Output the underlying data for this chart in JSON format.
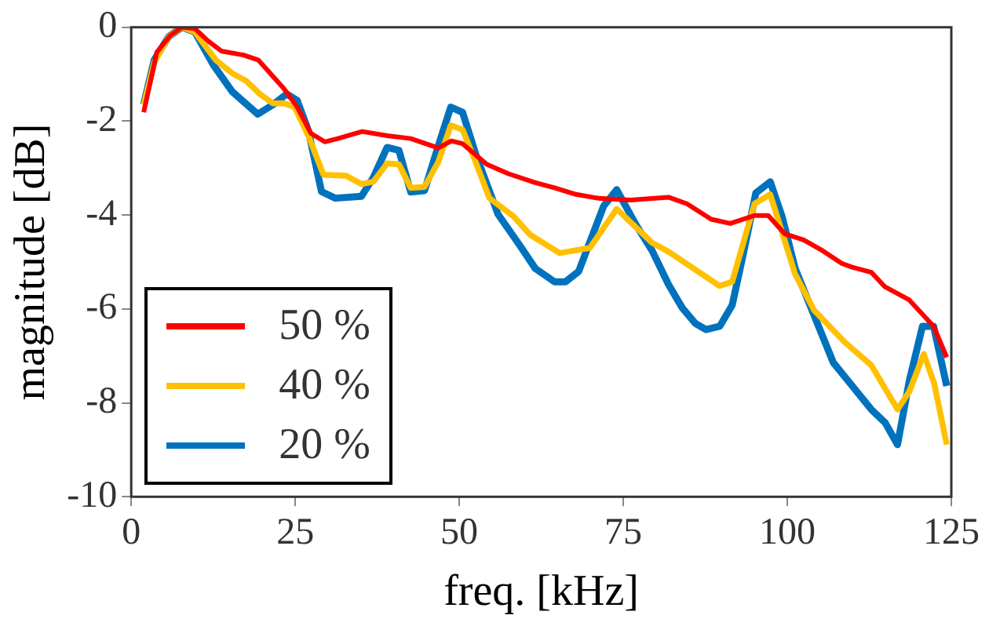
{
  "chart_data": {
    "type": "line",
    "xlabel": "freq. [kHz]",
    "ylabel": "magnitude [dB]",
    "xlim": [
      0,
      125
    ],
    "xticks": [
      0,
      25,
      50,
      75,
      100,
      125
    ],
    "ylim": [
      -10,
      0
    ],
    "yticks": [
      -10,
      -8,
      -6,
      -4,
      -2,
      0
    ],
    "grid": false,
    "legend": "bottom left",
    "marker": "none",
    "line_style": "solid",
    "series": [
      {
        "name": "50 %",
        "color": "#ff0000",
        "x": [
          1.9,
          3.9,
          5.9,
          7.7,
          9.7,
          11.7,
          13.8,
          17.1,
          19.4,
          23.3,
          25.3,
          27.4,
          29.5,
          31.5,
          35.2,
          39,
          42.6,
          46.8,
          48.8,
          50.5,
          54.2,
          57.5,
          61.6,
          64.5,
          67.8,
          71.1,
          76.1,
          81.9,
          84.7,
          88.4,
          91.3,
          95,
          97.1,
          99.6,
          102.5,
          105.4,
          108.3,
          109.9,
          112.8,
          114.9,
          118.6,
          122.3,
          124.3
        ],
        "values": [
          -1.81,
          -0.53,
          -0.18,
          0,
          -0.03,
          -0.29,
          -0.51,
          -0.59,
          -0.7,
          -1.31,
          -1.7,
          -2.26,
          -2.44,
          -2.37,
          -2.22,
          -2.31,
          -2.37,
          -2.57,
          -2.42,
          -2.48,
          -2.92,
          -3.12,
          -3.31,
          -3.42,
          -3.56,
          -3.64,
          -3.68,
          -3.62,
          -3.76,
          -4.09,
          -4.18,
          -4.01,
          -4.01,
          -4.4,
          -4.53,
          -4.76,
          -5.03,
          -5.11,
          -5.22,
          -5.53,
          -5.81,
          -6.37,
          -7.03
        ]
      },
      {
        "name": "40 %",
        "color": "#ffc000",
        "x": [
          1.9,
          3.5,
          5.7,
          7.7,
          9.7,
          12.9,
          15.4,
          17.5,
          19.6,
          21.6,
          23.3,
          24.9,
          27,
          29.3,
          32.7,
          35.1,
          36.9,
          39,
          40.8,
          42.6,
          44.7,
          46.8,
          48.7,
          50.5,
          52.5,
          54.6,
          58.3,
          60.8,
          65.3,
          69.9,
          74,
          79.4,
          81.9,
          89.7,
          91.6,
          95,
          97.4,
          101.2,
          104.1,
          108.7,
          112.8,
          116.8,
          118.6,
          120.8,
          122.4,
          124.3
        ],
        "values": [
          -1.65,
          -0.75,
          -0.2,
          0,
          -0.1,
          -0.7,
          -0.98,
          -1.14,
          -1.42,
          -1.62,
          -1.62,
          -1.7,
          -2.31,
          -3.14,
          -3.16,
          -3.34,
          -3.29,
          -2.9,
          -2.92,
          -3.42,
          -3.4,
          -2.87,
          -2.09,
          -2.18,
          -2.87,
          -3.64,
          -4.03,
          -4.42,
          -4.81,
          -4.7,
          -3.87,
          -4.59,
          -4.78,
          -5.51,
          -5.42,
          -3.76,
          -3.56,
          -5.26,
          -6.03,
          -6.7,
          -7.2,
          -8.14,
          -7.76,
          -6.96,
          -7.59,
          -8.89
        ]
      },
      {
        "name": "20 %",
        "color": "#0072bd",
        "x": [
          1.9,
          3.5,
          5.7,
          7.7,
          9.7,
          12.5,
          15.4,
          19.3,
          21.6,
          23.7,
          25.3,
          27,
          29,
          31.1,
          35.1,
          36.9,
          39,
          40.8,
          42.6,
          44.7,
          46.8,
          48.7,
          50.5,
          52.5,
          55.9,
          59.2,
          61.6,
          64.5,
          66.2,
          68.2,
          72,
          74,
          76.9,
          79.4,
          81.9,
          84,
          86,
          87.6,
          89.7,
          91.6,
          93.4,
          95.2,
          97.4,
          99.2,
          101.2,
          104.1,
          107,
          109.9,
          112.8,
          114.9,
          116.8,
          118.6,
          120.6,
          122.3,
          124.3
        ],
        "values": [
          -1.64,
          -0.7,
          -0.2,
          0,
          -0.1,
          -0.8,
          -1.37,
          -1.85,
          -1.65,
          -1.42,
          -1.56,
          -2.2,
          -3.5,
          -3.64,
          -3.6,
          -3.2,
          -2.56,
          -2.62,
          -3.51,
          -3.48,
          -2.53,
          -1.7,
          -1.81,
          -2.7,
          -3.98,
          -4.64,
          -5.14,
          -5.42,
          -5.42,
          -5.2,
          -3.81,
          -3.46,
          -4.2,
          -4.76,
          -5.48,
          -5.98,
          -6.31,
          -6.44,
          -6.37,
          -5.92,
          -4.76,
          -3.53,
          -3.29,
          -4.03,
          -5.14,
          -6.14,
          -7.14,
          -7.64,
          -8.14,
          -8.42,
          -8.89,
          -7.53,
          -6.37,
          -6.37,
          -7.64
        ]
      }
    ]
  }
}
